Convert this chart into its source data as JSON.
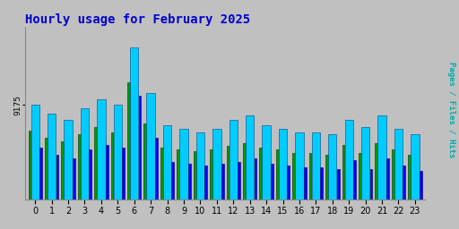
{
  "title": "Hourly usage for February 2025",
  "title_color": "#0000cc",
  "title_fontsize": 10,
  "hours": [
    0,
    1,
    2,
    3,
    4,
    5,
    6,
    7,
    8,
    9,
    10,
    11,
    12,
    13,
    14,
    15,
    16,
    17,
    18,
    19,
    20,
    21,
    22,
    23
  ],
  "hits": [
    9175,
    9150,
    9130,
    9165,
    9190,
    9175,
    9340,
    9210,
    9115,
    9105,
    9095,
    9105,
    9130,
    9145,
    9115,
    9105,
    9095,
    9095,
    9090,
    9130,
    9110,
    9145,
    9105,
    9090
  ],
  "files": [
    9050,
    9030,
    9020,
    9045,
    9060,
    9050,
    9200,
    9080,
    9010,
    9005,
    9000,
    9005,
    9010,
    9020,
    9005,
    9000,
    8995,
    8995,
    8990,
    9015,
    8990,
    9020,
    9000,
    8985
  ],
  "pages": [
    9100,
    9080,
    9070,
    9090,
    9110,
    9095,
    9240,
    9120,
    9050,
    9045,
    9040,
    9045,
    9055,
    9065,
    9050,
    9045,
    9035,
    9035,
    9030,
    9060,
    9035,
    9065,
    9045,
    9030
  ],
  "bar_color_hits": "#00ccff",
  "bar_color_files": "#0000ff",
  "bar_color_pages": "#009900",
  "bar_edge_hits": "#004488",
  "bar_edge_files": "#000066",
  "bar_edge_pages": "#003300",
  "bg_color": "#c0c0c0",
  "plot_bg": "#c0c0c0",
  "ylabel_color": "#00aaaa",
  "ytick_label": "9175",
  "ylabel": "Pages / Files / Hits",
  "ylim_min": 8900,
  "ylim_max": 9400,
  "figsize": [
    5.12,
    2.56
  ],
  "dpi": 100
}
